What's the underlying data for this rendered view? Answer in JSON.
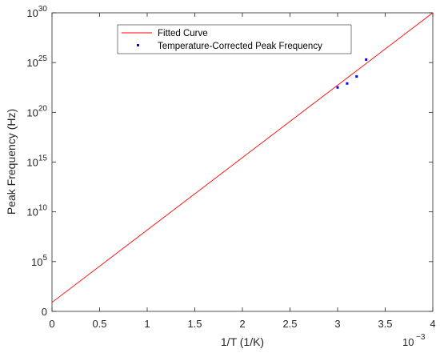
{
  "chart_data": {
    "type": "scatter",
    "title": "",
    "xlabel": "1/T (1/K)",
    "ylabel": "Peak Frequency (Hz)",
    "x_exponent_label": "10",
    "x_exponent_power": "−3",
    "xlim": [
      0,
      0.004
    ],
    "ylim_log10": [
      0,
      30
    ],
    "y_scale": "log",
    "grid": false,
    "legend_position": "top-center",
    "x_ticks": [
      0,
      0.0005,
      0.001,
      0.0015,
      0.002,
      0.0025,
      0.003,
      0.0035,
      0.004
    ],
    "x_tick_labels": [
      "0",
      "0.5",
      "1",
      "1.5",
      "2",
      "2.5",
      "3",
      "3.5",
      "4"
    ],
    "y_ticks_log10": [
      0,
      5,
      10,
      15,
      20,
      25,
      30
    ],
    "y_tick_labels": [
      {
        "base": "0",
        "exp": ""
      },
      {
        "base": "10",
        "exp": "5"
      },
      {
        "base": "10",
        "exp": "10"
      },
      {
        "base": "10",
        "exp": "15"
      },
      {
        "base": "10",
        "exp": "20"
      },
      {
        "base": "10",
        "exp": "25"
      },
      {
        "base": "10",
        "exp": "30"
      }
    ],
    "series": [
      {
        "name": "Fitted Curve",
        "kind": "line",
        "color": "#ff0000",
        "x": [
          0,
          0.004
        ],
        "y_log10": [
          0.9,
          30.0
        ]
      },
      {
        "name": "Temperature-Corrected Peak Frequency",
        "kind": "scatter",
        "color": "#0000ff",
        "x": [
          0.003,
          0.0031,
          0.0032,
          0.0033
        ],
        "y_log10": [
          22.5,
          22.9,
          23.6,
          25.3
        ]
      }
    ]
  }
}
